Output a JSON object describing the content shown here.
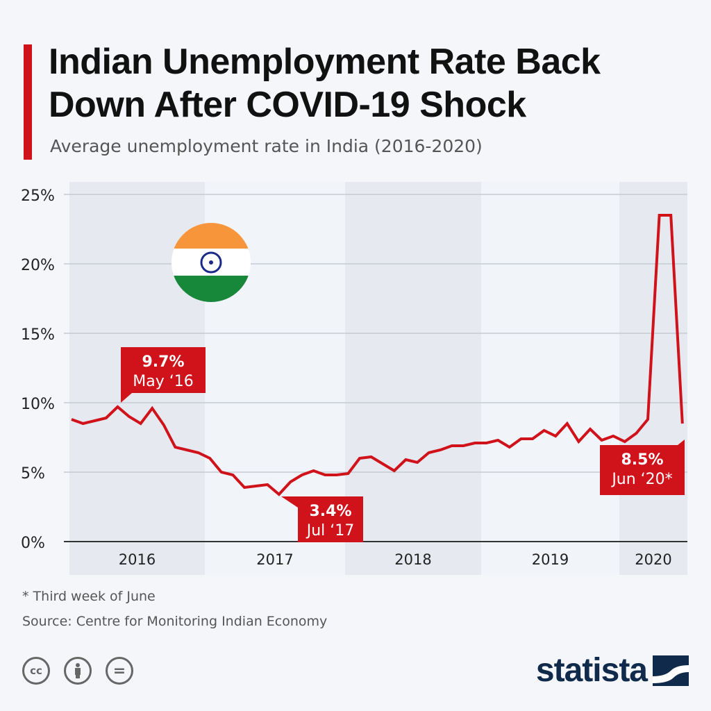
{
  "title": "Indian Unemployment Rate Back Down After COVID-19 Shock",
  "subtitle": "Average unemployment rate in India (2016-2020)",
  "chart_data": {
    "type": "line",
    "y_unit": "%",
    "ylim": [
      0,
      25
    ],
    "y_ticks": [
      "0%",
      "5%",
      "10%",
      "15%",
      "20%",
      "25%"
    ],
    "x_ticks": [
      "2016",
      "2017",
      "2018",
      "2019",
      "2020"
    ],
    "grid": true,
    "x": [
      "Jan 2016",
      "Feb 2016",
      "Mar 2016",
      "Apr 2016",
      "May 2016",
      "Jun 2016",
      "Jul 2016",
      "Aug 2016",
      "Sep 2016",
      "Oct 2016",
      "Nov 2016",
      "Dec 2016",
      "Jan 2017",
      "Feb 2017",
      "Mar 2017",
      "Apr 2017",
      "May 2017",
      "Jun 2017",
      "Jul 2017",
      "Aug 2017",
      "Sep 2017",
      "Oct 2017",
      "Nov 2017",
      "Dec 2017",
      "Jan 2018",
      "Feb 2018",
      "Mar 2018",
      "Apr 2018",
      "May 2018",
      "Jun 2018",
      "Jul 2018",
      "Aug 2018",
      "Sep 2018",
      "Oct 2018",
      "Nov 2018",
      "Dec 2018",
      "Jan 2019",
      "Feb 2019",
      "Mar 2019",
      "Apr 2019",
      "May 2019",
      "Jun 2019",
      "Jul 2019",
      "Aug 2019",
      "Sep 2019",
      "Oct 2019",
      "Nov 2019",
      "Dec 2019",
      "Jan 2020",
      "Feb 2020",
      "Mar 2020",
      "Apr 2020",
      "May 2020",
      "Jun 2020"
    ],
    "values": [
      8.8,
      8.5,
      8.7,
      8.9,
      9.7,
      9.0,
      8.5,
      9.6,
      8.4,
      6.8,
      6.6,
      6.4,
      6.0,
      5.0,
      4.8,
      3.9,
      4.0,
      4.1,
      3.4,
      4.3,
      4.8,
      5.1,
      4.8,
      4.8,
      4.9,
      6.0,
      6.1,
      5.6,
      5.1,
      5.9,
      5.7,
      6.4,
      6.6,
      6.9,
      6.9,
      7.1,
      7.1,
      7.3,
      6.8,
      7.4,
      7.4,
      8.0,
      7.6,
      8.5,
      7.2,
      8.1,
      7.3,
      7.6,
      7.2,
      7.8,
      8.8,
      23.5,
      23.5,
      8.5
    ],
    "color": "#d0121b",
    "annotations": [
      {
        "value": "9.7%",
        "date": "May ‘16"
      },
      {
        "value": "3.4%",
        "date": "Jul ‘17"
      },
      {
        "value": "8.5%",
        "date": "Jun ‘20*"
      }
    ]
  },
  "footnote": "* Third week of June",
  "source": "Source: Centre for Monitoring Indian Economy",
  "license_icons": [
    "cc-icon",
    "attribution-icon",
    "no-derivatives-icon"
  ],
  "license_cc_label": "cc",
  "brand": "statista"
}
